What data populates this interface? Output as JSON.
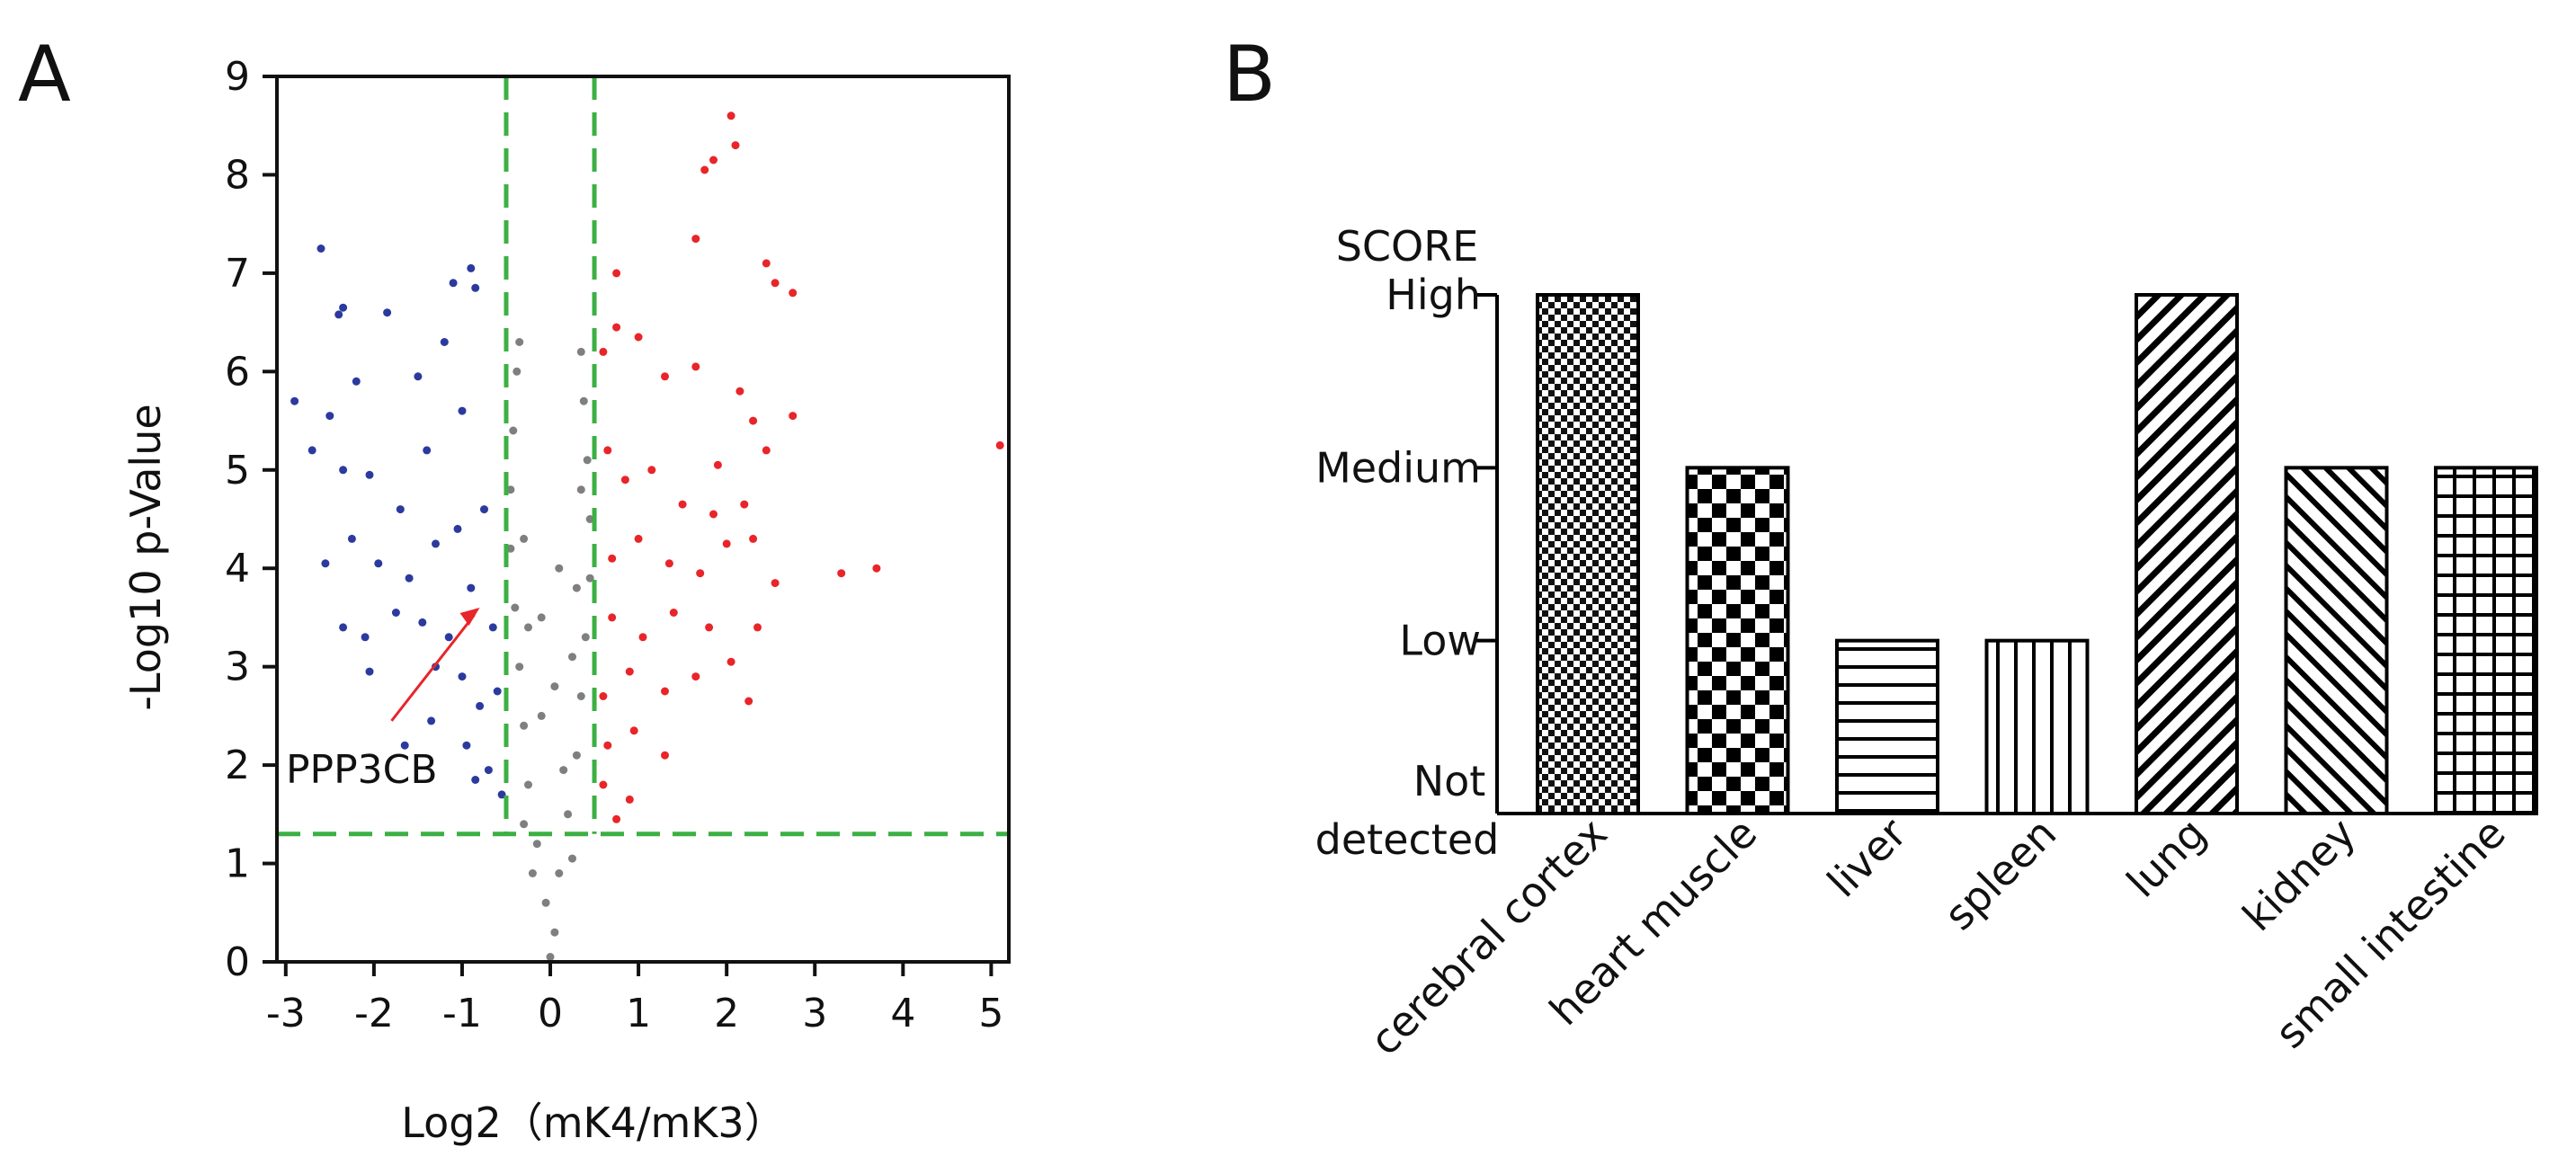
{
  "panels": {
    "a_label": "A",
    "b_label": "B"
  },
  "chart_data": [
    {
      "type": "scatter",
      "panel": "A",
      "xlabel": "Log2（mK4/mK3）",
      "ylabel": "-Log10 p-Value",
      "xlim": [
        -3.1,
        5.2
      ],
      "ylim": [
        0,
        9
      ],
      "x_ticks": [
        "-3",
        "-2",
        "-1",
        "0",
        "1",
        "2",
        "3",
        "4",
        "5"
      ],
      "y_ticks": [
        "0",
        "1",
        "2",
        "3",
        "4",
        "5",
        "6",
        "7",
        "8",
        "9"
      ],
      "thresholds": {
        "log2fc": [
          -0.5,
          0.5
        ],
        "neg_log10_p": 1.3
      },
      "colors": {
        "down": "#2b3a9e",
        "up": "#e8252a",
        "ns": "#7f7f7f",
        "threshold": "#3cb043",
        "annotation": "#e8252a"
      },
      "series": [
        {
          "name": "",
          "color": "#2b3a9e",
          "points": [
            [
              -2.6,
              7.25
            ],
            [
              -2.35,
              6.65
            ],
            [
              -2.4,
              6.58
            ],
            [
              -1.85,
              6.6
            ],
            [
              -1.1,
              6.9
            ],
            [
              -0.85,
              6.85
            ],
            [
              -0.9,
              7.05
            ],
            [
              -2.9,
              5.7
            ],
            [
              -2.5,
              5.55
            ],
            [
              -2.2,
              5.9
            ],
            [
              -1.5,
              5.95
            ],
            [
              -1.2,
              6.3
            ],
            [
              -2.7,
              5.2
            ],
            [
              -2.35,
              5.0
            ],
            [
              -2.05,
              4.95
            ],
            [
              -1.7,
              4.6
            ],
            [
              -1.4,
              5.2
            ],
            [
              -1.0,
              5.6
            ],
            [
              -2.55,
              4.05
            ],
            [
              -2.25,
              4.3
            ],
            [
              -1.95,
              4.05
            ],
            [
              -1.6,
              3.9
            ],
            [
              -1.3,
              4.25
            ],
            [
              -1.05,
              4.4
            ],
            [
              -0.75,
              4.6
            ],
            [
              -2.35,
              3.4
            ],
            [
              -2.1,
              3.3
            ],
            [
              -1.75,
              3.55
            ],
            [
              -1.45,
              3.45
            ],
            [
              -1.15,
              3.3
            ],
            [
              -0.9,
              3.8
            ],
            [
              -0.65,
              3.4
            ],
            [
              -2.05,
              2.95
            ],
            [
              -1.3,
              3.0
            ],
            [
              -1.0,
              2.9
            ],
            [
              -0.8,
              2.6
            ],
            [
              -0.6,
              2.75
            ],
            [
              -1.65,
              2.2
            ],
            [
              -1.35,
              2.45
            ],
            [
              -0.95,
              2.2
            ],
            [
              -0.7,
              1.95
            ],
            [
              -0.55,
              1.7
            ],
            [
              -0.85,
              1.85
            ]
          ]
        },
        {
          "name": "",
          "color": "#e8252a",
          "points": [
            [
              2.05,
              8.6
            ],
            [
              2.1,
              8.3
            ],
            [
              1.75,
              8.05
            ],
            [
              1.85,
              8.15
            ],
            [
              1.65,
              7.35
            ],
            [
              0.75,
              7.0
            ],
            [
              2.45,
              7.1
            ],
            [
              2.55,
              6.9
            ],
            [
              2.75,
              6.8
            ],
            [
              0.6,
              6.2
            ],
            [
              0.75,
              6.45
            ],
            [
              1.0,
              6.35
            ],
            [
              1.3,
              5.95
            ],
            [
              1.65,
              6.05
            ],
            [
              2.15,
              5.8
            ],
            [
              2.3,
              5.5
            ],
            [
              2.75,
              5.55
            ],
            [
              1.9,
              5.05
            ],
            [
              2.45,
              5.2
            ],
            [
              5.1,
              5.25
            ],
            [
              0.65,
              5.2
            ],
            [
              0.85,
              4.9
            ],
            [
              1.15,
              5.0
            ],
            [
              1.5,
              4.65
            ],
            [
              1.85,
              4.55
            ],
            [
              2.2,
              4.65
            ],
            [
              0.7,
              4.1
            ],
            [
              1.0,
              4.3
            ],
            [
              1.35,
              4.05
            ],
            [
              1.7,
              3.95
            ],
            [
              2.0,
              4.25
            ],
            [
              2.3,
              4.3
            ],
            [
              2.55,
              3.85
            ],
            [
              3.3,
              3.95
            ],
            [
              3.7,
              4.0
            ],
            [
              0.7,
              3.5
            ],
            [
              1.05,
              3.3
            ],
            [
              1.4,
              3.55
            ],
            [
              1.8,
              3.4
            ],
            [
              2.05,
              3.05
            ],
            [
              2.35,
              3.4
            ],
            [
              0.6,
              2.7
            ],
            [
              0.9,
              2.95
            ],
            [
              1.3,
              2.75
            ],
            [
              1.65,
              2.9
            ],
            [
              2.25,
              2.65
            ],
            [
              0.65,
              2.2
            ],
            [
              0.95,
              2.35
            ],
            [
              1.3,
              2.1
            ],
            [
              0.6,
              1.8
            ],
            [
              0.9,
              1.65
            ],
            [
              0.75,
              1.45
            ]
          ]
        },
        {
          "name": "",
          "color": "#7f7f7f",
          "points": [
            [
              0.0,
              0.05
            ],
            [
              0.05,
              0.3
            ],
            [
              -0.05,
              0.6
            ],
            [
              0.1,
              0.9
            ],
            [
              -0.15,
              1.2
            ],
            [
              0.2,
              1.5
            ],
            [
              -0.25,
              1.8
            ],
            [
              0.3,
              2.1
            ],
            [
              -0.3,
              2.4
            ],
            [
              0.35,
              2.7
            ],
            [
              -0.35,
              3.0
            ],
            [
              0.4,
              3.3
            ],
            [
              -0.4,
              3.6
            ],
            [
              0.45,
              3.9
            ],
            [
              -0.45,
              4.2
            ],
            [
              0.45,
              4.5
            ],
            [
              -0.45,
              4.8
            ],
            [
              0.42,
              5.1
            ],
            [
              -0.42,
              5.4
            ],
            [
              0.38,
              5.7
            ],
            [
              -0.38,
              6.0
            ],
            [
              0.35,
              6.2
            ],
            [
              -0.35,
              6.3
            ],
            [
              -0.2,
              0.9
            ],
            [
              0.25,
              1.05
            ],
            [
              -0.3,
              1.4
            ],
            [
              0.15,
              1.95
            ],
            [
              -0.1,
              2.5
            ],
            [
              0.25,
              3.1
            ],
            [
              -0.25,
              3.4
            ],
            [
              0.3,
              3.8
            ],
            [
              -0.3,
              4.3
            ],
            [
              0.35,
              4.8
            ],
            [
              0.1,
              4.0
            ],
            [
              -0.1,
              3.5
            ],
            [
              0.05,
              2.8
            ]
          ]
        }
      ],
      "annotations": [
        {
          "text": "PPP3CB",
          "x": -0.8,
          "y": 3.6
        }
      ]
    },
    {
      "type": "bar",
      "panel": "B",
      "ylabel": "SCORE",
      "categories": [
        "cerebral cortex",
        "heart muscle",
        "liver",
        "spleen",
        "lung",
        "kidney",
        "small intestine"
      ],
      "levels": [
        "Not detected",
        "Low",
        "Medium",
        "High"
      ],
      "y_tick_lines": [
        [
          "Not",
          "detected"
        ],
        [
          "Low"
        ],
        [
          "Medium"
        ],
        [
          "High"
        ]
      ],
      "values": [
        3,
        2,
        1,
        1,
        3,
        2,
        2
      ],
      "patterns": [
        "fine-checker",
        "checker",
        "horizontal-lines",
        "vertical-lines",
        "diagonal-up",
        "diagonal-down",
        "grid"
      ],
      "ylim": [
        0,
        3
      ]
    }
  ]
}
